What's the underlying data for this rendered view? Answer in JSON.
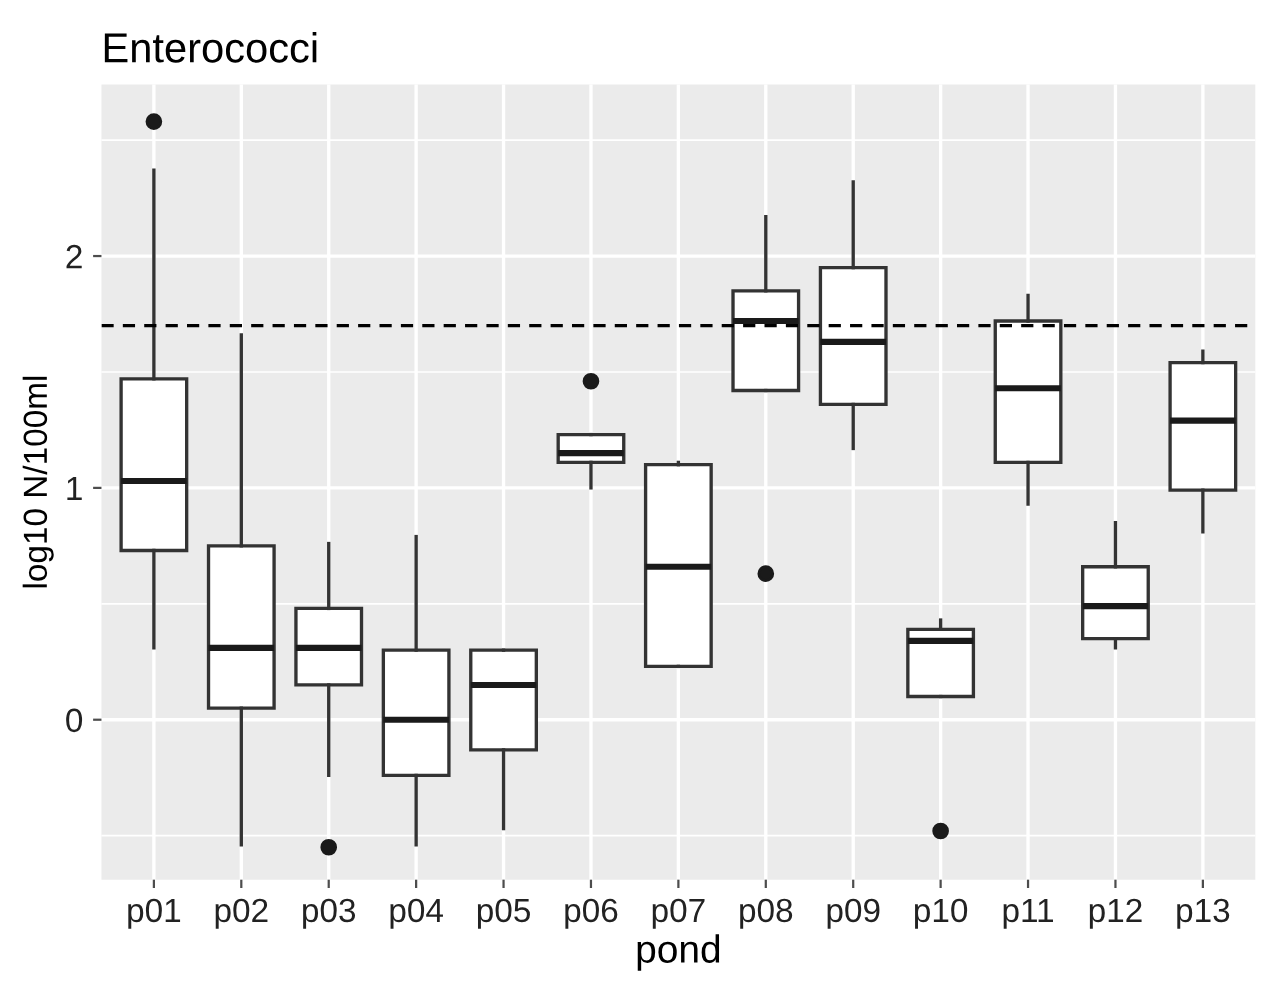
{
  "chart_data": {
    "type": "box",
    "title": "Enterococci",
    "xlabel": "pond",
    "ylabel": "log10 N/100ml",
    "categories": [
      "p01",
      "p02",
      "p03",
      "p04",
      "p05",
      "p06",
      "p07",
      "p08",
      "p09",
      "p10",
      "p11",
      "p12",
      "p13"
    ],
    "boxes": [
      {
        "low": 0.31,
        "q1": 0.73,
        "median": 1.03,
        "q3": 1.47,
        "high": 2.37,
        "outliers": [
          2.58
        ]
      },
      {
        "low": -0.54,
        "q1": 0.05,
        "median": 0.31,
        "q3": 0.75,
        "high": 1.66
      },
      {
        "low": -0.24,
        "q1": 0.15,
        "median": 0.31,
        "q3": 0.48,
        "high": 0.76,
        "outliers": [
          -0.55
        ]
      },
      {
        "low": -0.54,
        "q1": -0.24,
        "median": 0.0,
        "q3": 0.3,
        "high": 0.79
      },
      {
        "low": -0.47,
        "q1": -0.13,
        "median": 0.15,
        "q3": 0.3,
        "high": 0.3
      },
      {
        "low": 1.0,
        "q1": 1.11,
        "median": 1.15,
        "q3": 1.23,
        "high": 1.23,
        "outliers": [
          1.46
        ]
      },
      {
        "low": 0.23,
        "q1": 0.23,
        "median": 0.66,
        "q3": 1.1,
        "high": 1.11
      },
      {
        "low": 1.42,
        "q1": 1.42,
        "median": 1.72,
        "q3": 1.85,
        "high": 2.17,
        "outliers": [
          0.63
        ]
      },
      {
        "low": 1.17,
        "q1": 1.36,
        "median": 1.63,
        "q3": 1.95,
        "high": 2.32
      },
      {
        "low": 0.1,
        "q1": 0.1,
        "median": 0.34,
        "q3": 0.39,
        "high": 0.43,
        "outliers": [
          -0.48
        ]
      },
      {
        "low": 0.93,
        "q1": 1.11,
        "median": 1.43,
        "q3": 1.72,
        "high": 1.83
      },
      {
        "low": 0.31,
        "q1": 0.35,
        "median": 0.49,
        "q3": 0.66,
        "high": 0.85
      },
      {
        "low": 0.81,
        "q1": 0.99,
        "median": 1.29,
        "q3": 1.54,
        "high": 1.59
      }
    ],
    "ylim": [
      -0.69,
      2.74
    ],
    "yticks": [
      0,
      1,
      2
    ],
    "grid": true,
    "ref_lines": [
      {
        "axis": "y",
        "value": 1.7,
        "line_style": "dashed",
        "color": "#000000"
      }
    ]
  }
}
